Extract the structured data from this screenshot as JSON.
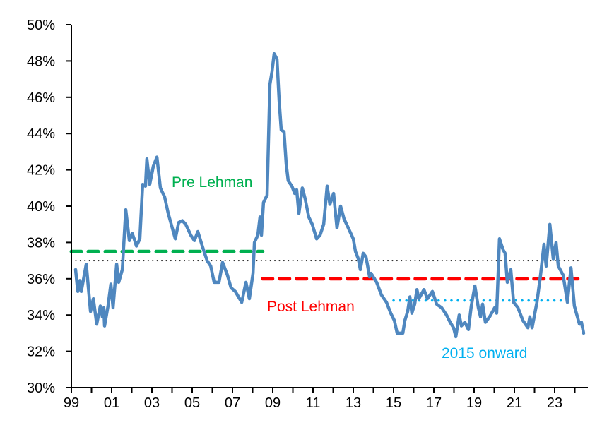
{
  "chart_data": {
    "type": "line",
    "title": "",
    "xlabel": "",
    "ylabel": "",
    "ylim": [
      30,
      50
    ],
    "xlim": [
      1999,
      2024.5
    ],
    "y_ticks": [
      "30%",
      "32%",
      "34%",
      "36%",
      "38%",
      "40%",
      "42%",
      "44%",
      "46%",
      "48%",
      "50%"
    ],
    "x_ticks": [
      "99",
      "01",
      "03",
      "05",
      "07",
      "09",
      "11",
      "13",
      "15",
      "17",
      "19",
      "21",
      "23"
    ],
    "grid": false,
    "series": [
      {
        "color": "#4f87bf",
        "x": [
          1999.21,
          1999.32,
          1999.42,
          1999.49,
          1999.74,
          1999.95,
          2000.09,
          2000.26,
          2000.44,
          2000.54,
          2000.61,
          2000.65,
          2000.82,
          2000.96,
          2001.07,
          2001.25,
          2001.35,
          2001.53,
          2001.7,
          2001.88,
          2002.02,
          2002.12,
          2002.23,
          2002.4,
          2002.54,
          2002.68,
          2002.75,
          2002.89,
          2003.07,
          2003.25,
          2003.42,
          2003.63,
          2003.81,
          2004.16,
          2004.33,
          2004.51,
          2004.68,
          2004.93,
          2005.11,
          2005.28,
          2005.53,
          2005.74,
          2005.92,
          2006.09,
          2006.33,
          2006.51,
          2006.75,
          2006.93,
          2007.14,
          2007.46,
          2007.67,
          2007.84,
          2008.02,
          2008.09,
          2008.26,
          2008.37,
          2008.44,
          2008.54,
          2008.72,
          2008.86,
          2008.96,
          2009.07,
          2009.21,
          2009.32,
          2009.42,
          2009.56,
          2009.67,
          2009.77,
          2009.95,
          2010.09,
          2010.19,
          2010.3,
          2010.47,
          2010.61,
          2010.79,
          2010.96,
          2011.18,
          2011.35,
          2011.53,
          2011.7,
          2011.84,
          2012.02,
          2012.19,
          2012.37,
          2012.54,
          2012.75,
          2013.0,
          2013.11,
          2013.25,
          2013.35,
          2013.49,
          2013.63,
          2013.81,
          2013.88,
          2014.16,
          2014.4,
          2014.65,
          2014.86,
          2015.04,
          2015.18,
          2015.46,
          2015.56,
          2015.7,
          2015.81,
          2015.91,
          2016.05,
          2016.16,
          2016.26,
          2016.51,
          2016.68,
          2016.93,
          2017.14,
          2017.39,
          2017.63,
          2017.81,
          2017.98,
          2018.09,
          2018.26,
          2018.37,
          2018.54,
          2018.72,
          2018.86,
          2019.04,
          2019.21,
          2019.32,
          2019.42,
          2019.56,
          2019.77,
          2020.02,
          2020.12,
          2020.26,
          2020.44,
          2020.54,
          2020.65,
          2020.82,
          2020.96,
          2021.18,
          2021.42,
          2021.67,
          2021.77,
          2021.88,
          2022.12,
          2022.3,
          2022.47,
          2022.58,
          2022.76,
          2022.93,
          2023.07,
          2023.18,
          2023.42,
          2023.63,
          2023.81,
          2023.98,
          2024.23,
          2024.33,
          2024.44
        ],
        "values": [
          36.5,
          35.3,
          35.9,
          35.3,
          36.8,
          34.2,
          34.9,
          33.5,
          34.5,
          33.9,
          34.4,
          33.4,
          34.5,
          35.7,
          34.4,
          36.8,
          35.8,
          36.5,
          39.8,
          38.1,
          38.5,
          38.2,
          37.8,
          38.2,
          41.2,
          41.1,
          42.6,
          41.2,
          42.2,
          42.7,
          41.0,
          40.5,
          39.6,
          38.2,
          39.1,
          39.2,
          39.0,
          38.4,
          38.1,
          38.6,
          37.7,
          37.0,
          36.7,
          35.8,
          35.8,
          36.9,
          36.2,
          35.5,
          35.3,
          34.7,
          35.8,
          34.9,
          36.3,
          38.0,
          38.4,
          39.4,
          38.4,
          40.2,
          40.6,
          46.7,
          47.4,
          48.4,
          48.1,
          45.8,
          44.2,
          44.1,
          42.3,
          41.4,
          41.1,
          40.7,
          40.9,
          39.6,
          41.0,
          40.4,
          39.4,
          39.0,
          38.2,
          38.4,
          39.0,
          41.1,
          40.1,
          40.7,
          38.8,
          40.0,
          39.3,
          38.8,
          38.2,
          37.5,
          37.1,
          36.5,
          37.4,
          37.2,
          36.1,
          36.3,
          35.8,
          35.1,
          34.7,
          34.1,
          33.7,
          33.0,
          33.0,
          33.7,
          34.2,
          35.0,
          34.1,
          34.6,
          35.4,
          34.9,
          35.4,
          34.9,
          35.3,
          34.6,
          34.4,
          34.0,
          33.6,
          33.3,
          32.8,
          34.0,
          33.4,
          33.6,
          33.2,
          34.5,
          35.6,
          34.4,
          33.9,
          34.6,
          33.6,
          33.9,
          34.4,
          34.1,
          38.2,
          37.6,
          37.4,
          35.8,
          36.5,
          34.7,
          34.4,
          33.7,
          33.3,
          33.9,
          33.3,
          34.7,
          36.2,
          37.9,
          36.7,
          39.0,
          37.1,
          38.0,
          36.7,
          36.2,
          34.7,
          36.6,
          34.5,
          33.5,
          33.6,
          33.0
        ]
      }
    ],
    "reference_lines": [
      {
        "label": "Pre Lehman",
        "value": 37.5,
        "x_range": [
          1999,
          2008.5
        ],
        "style": "dashed",
        "color": "#00b050"
      },
      {
        "label": "",
        "value": 37.0,
        "x_range": [
          1999,
          2024.2
        ],
        "style": "dotted",
        "color": "#000000"
      },
      {
        "label": "Post Lehman",
        "value": 36.0,
        "x_range": [
          2008.5,
          2024.4
        ],
        "style": "dashed",
        "color": "#ff0000"
      },
      {
        "label": "2015 onward",
        "value": 34.8,
        "x_range": [
          2015.0,
          2024.0
        ],
        "style": "dotted",
        "color": "#00b0f0"
      }
    ]
  }
}
